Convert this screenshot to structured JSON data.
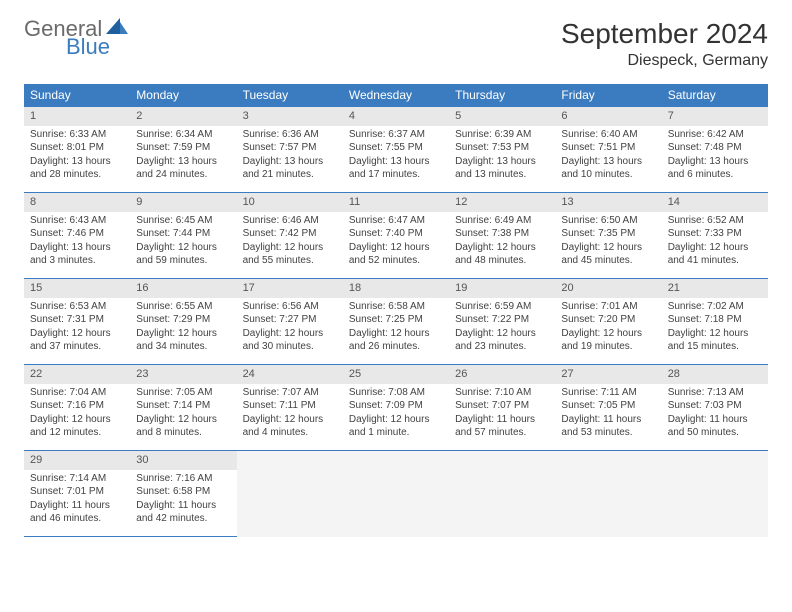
{
  "branding": {
    "logo_word1": "General",
    "logo_word2": "Blue",
    "logo_color_gray": "#6b6b6b",
    "logo_color_blue": "#3b7bbf"
  },
  "header": {
    "month_title": "September 2024",
    "location": "Diespeck, Germany"
  },
  "styling": {
    "header_bg": "#3b7bbf",
    "header_text": "#ffffff",
    "daynum_bg": "#e8e8e8",
    "row_divider": "#3b7bbf",
    "body_text": "#424242",
    "title_fontsize_pt": 21,
    "location_fontsize_pt": 12,
    "dayhead_fontsize_pt": 9,
    "cell_fontsize_pt": 7.5
  },
  "weekdays": [
    "Sunday",
    "Monday",
    "Tuesday",
    "Wednesday",
    "Thursday",
    "Friday",
    "Saturday"
  ],
  "days": [
    {
      "n": "1",
      "sr": "Sunrise: 6:33 AM",
      "ss": "Sunset: 8:01 PM",
      "dl": "Daylight: 13 hours and 28 minutes."
    },
    {
      "n": "2",
      "sr": "Sunrise: 6:34 AM",
      "ss": "Sunset: 7:59 PM",
      "dl": "Daylight: 13 hours and 24 minutes."
    },
    {
      "n": "3",
      "sr": "Sunrise: 6:36 AM",
      "ss": "Sunset: 7:57 PM",
      "dl": "Daylight: 13 hours and 21 minutes."
    },
    {
      "n": "4",
      "sr": "Sunrise: 6:37 AM",
      "ss": "Sunset: 7:55 PM",
      "dl": "Daylight: 13 hours and 17 minutes."
    },
    {
      "n": "5",
      "sr": "Sunrise: 6:39 AM",
      "ss": "Sunset: 7:53 PM",
      "dl": "Daylight: 13 hours and 13 minutes."
    },
    {
      "n": "6",
      "sr": "Sunrise: 6:40 AM",
      "ss": "Sunset: 7:51 PM",
      "dl": "Daylight: 13 hours and 10 minutes."
    },
    {
      "n": "7",
      "sr": "Sunrise: 6:42 AM",
      "ss": "Sunset: 7:48 PM",
      "dl": "Daylight: 13 hours and 6 minutes."
    },
    {
      "n": "8",
      "sr": "Sunrise: 6:43 AM",
      "ss": "Sunset: 7:46 PM",
      "dl": "Daylight: 13 hours and 3 minutes."
    },
    {
      "n": "9",
      "sr": "Sunrise: 6:45 AM",
      "ss": "Sunset: 7:44 PM",
      "dl": "Daylight: 12 hours and 59 minutes."
    },
    {
      "n": "10",
      "sr": "Sunrise: 6:46 AM",
      "ss": "Sunset: 7:42 PM",
      "dl": "Daylight: 12 hours and 55 minutes."
    },
    {
      "n": "11",
      "sr": "Sunrise: 6:47 AM",
      "ss": "Sunset: 7:40 PM",
      "dl": "Daylight: 12 hours and 52 minutes."
    },
    {
      "n": "12",
      "sr": "Sunrise: 6:49 AM",
      "ss": "Sunset: 7:38 PM",
      "dl": "Daylight: 12 hours and 48 minutes."
    },
    {
      "n": "13",
      "sr": "Sunrise: 6:50 AM",
      "ss": "Sunset: 7:35 PM",
      "dl": "Daylight: 12 hours and 45 minutes."
    },
    {
      "n": "14",
      "sr": "Sunrise: 6:52 AM",
      "ss": "Sunset: 7:33 PM",
      "dl": "Daylight: 12 hours and 41 minutes."
    },
    {
      "n": "15",
      "sr": "Sunrise: 6:53 AM",
      "ss": "Sunset: 7:31 PM",
      "dl": "Daylight: 12 hours and 37 minutes."
    },
    {
      "n": "16",
      "sr": "Sunrise: 6:55 AM",
      "ss": "Sunset: 7:29 PM",
      "dl": "Daylight: 12 hours and 34 minutes."
    },
    {
      "n": "17",
      "sr": "Sunrise: 6:56 AM",
      "ss": "Sunset: 7:27 PM",
      "dl": "Daylight: 12 hours and 30 minutes."
    },
    {
      "n": "18",
      "sr": "Sunrise: 6:58 AM",
      "ss": "Sunset: 7:25 PM",
      "dl": "Daylight: 12 hours and 26 minutes."
    },
    {
      "n": "19",
      "sr": "Sunrise: 6:59 AM",
      "ss": "Sunset: 7:22 PM",
      "dl": "Daylight: 12 hours and 23 minutes."
    },
    {
      "n": "20",
      "sr": "Sunrise: 7:01 AM",
      "ss": "Sunset: 7:20 PM",
      "dl": "Daylight: 12 hours and 19 minutes."
    },
    {
      "n": "21",
      "sr": "Sunrise: 7:02 AM",
      "ss": "Sunset: 7:18 PM",
      "dl": "Daylight: 12 hours and 15 minutes."
    },
    {
      "n": "22",
      "sr": "Sunrise: 7:04 AM",
      "ss": "Sunset: 7:16 PM",
      "dl": "Daylight: 12 hours and 12 minutes."
    },
    {
      "n": "23",
      "sr": "Sunrise: 7:05 AM",
      "ss": "Sunset: 7:14 PM",
      "dl": "Daylight: 12 hours and 8 minutes."
    },
    {
      "n": "24",
      "sr": "Sunrise: 7:07 AM",
      "ss": "Sunset: 7:11 PM",
      "dl": "Daylight: 12 hours and 4 minutes."
    },
    {
      "n": "25",
      "sr": "Sunrise: 7:08 AM",
      "ss": "Sunset: 7:09 PM",
      "dl": "Daylight: 12 hours and 1 minute."
    },
    {
      "n": "26",
      "sr": "Sunrise: 7:10 AM",
      "ss": "Sunset: 7:07 PM",
      "dl": "Daylight: 11 hours and 57 minutes."
    },
    {
      "n": "27",
      "sr": "Sunrise: 7:11 AM",
      "ss": "Sunset: 7:05 PM",
      "dl": "Daylight: 11 hours and 53 minutes."
    },
    {
      "n": "28",
      "sr": "Sunrise: 7:13 AM",
      "ss": "Sunset: 7:03 PM",
      "dl": "Daylight: 11 hours and 50 minutes."
    },
    {
      "n": "29",
      "sr": "Sunrise: 7:14 AM",
      "ss": "Sunset: 7:01 PM",
      "dl": "Daylight: 11 hours and 46 minutes."
    },
    {
      "n": "30",
      "sr": "Sunrise: 7:16 AM",
      "ss": "Sunset: 6:58 PM",
      "dl": "Daylight: 11 hours and 42 minutes."
    }
  ]
}
